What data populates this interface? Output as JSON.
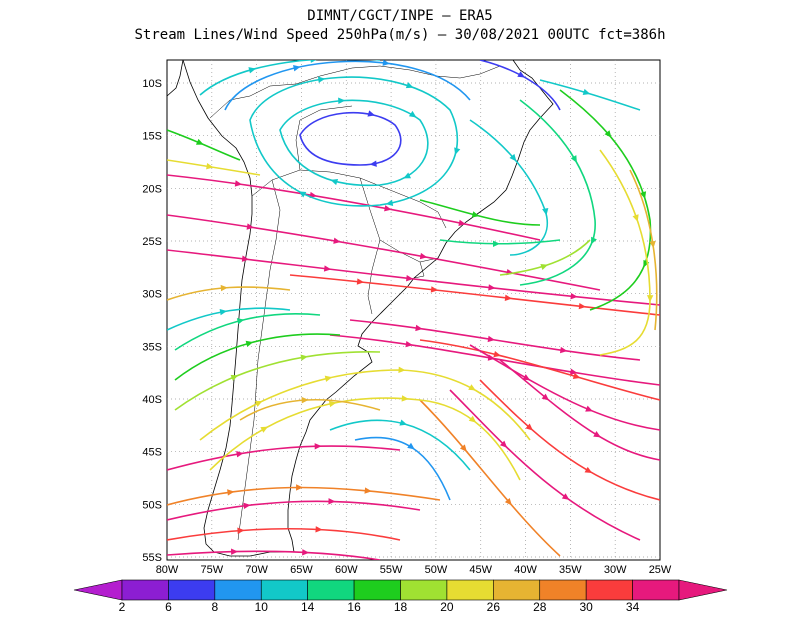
{
  "header": {
    "line1": "DIMNT/CGCT/INPE –  ERA5",
    "line2": "Stream Lines/Wind Speed 250hPa(m/s) –  30/08/2021 00UTC fct=386h"
  },
  "map": {
    "lon_labels": [
      "80W",
      "75W",
      "70W",
      "65W",
      "60W",
      "55W",
      "50W",
      "45W",
      "40W",
      "35W",
      "30W",
      "25W"
    ],
    "lat_labels": [
      "10S",
      "15S",
      "20S",
      "25S",
      "30S",
      "35S",
      "40S",
      "45S",
      "50S",
      "55S"
    ],
    "grid": "dotted",
    "projection": "lat-lon"
  },
  "colorbar": {
    "labels": [
      "2",
      "6",
      "8",
      "10",
      "14",
      "16",
      "18",
      "20",
      "26",
      "28",
      "30",
      "34"
    ],
    "colors": [
      "#b41ecf",
      "#8c1ed2",
      "#3c3cf0",
      "#2196f0",
      "#12c8c8",
      "#11d77f",
      "#1ecd1e",
      "#a0e132",
      "#e6dc32",
      "#e6b432",
      "#f08228",
      "#fa3c3c",
      "#e6197d"
    ]
  }
}
